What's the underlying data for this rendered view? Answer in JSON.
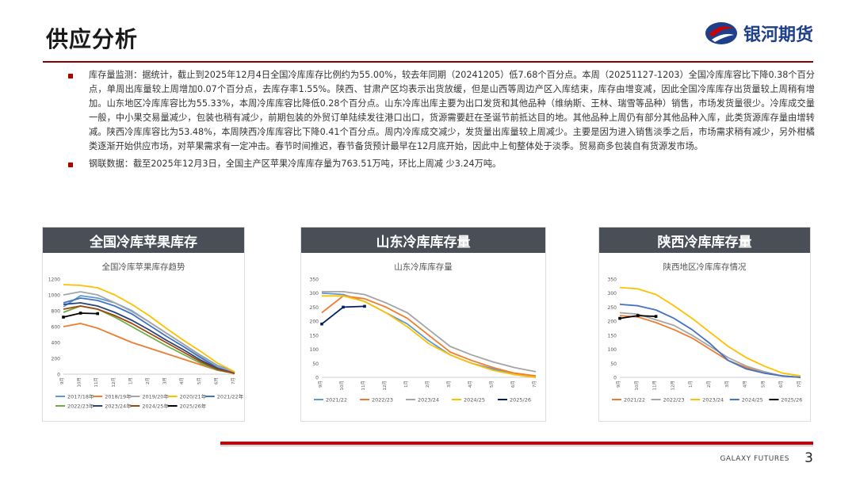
{
  "header": {
    "title": "供应分析",
    "logo_text": "银河期货"
  },
  "bullets": [
    "库存量监测：据统计，截止到2025年12月4日全国冷库库存比例约为55.00%，较去年同期（20241205）低7.68个百分点。本周（20251127-1203）全国冷库库容比下降0.38个百分点，单周出库量较上周增加0.07个百分点，去库存率1.55%。陕西、甘肃产区均表示出货放缓，但是山西等周边产区入库结束，库存由增变减，因此全国冷库库存出货量较上周稍有增加。山东地区冷库库容比为55.33%，本周冷库库容比降低0.28个百分点。山东冷库出库主要为出口发货和其他品种（维纳斯、王林、瑞雪等品种）销售，市场发货量很少。冷库成交量一般，中小果交易量减少，包装也稍有减少，前期包装的外贸订单陆续发往港口出口，货源需要赶在圣诞节前抵达目的地。其他品种上周仍有部分其他品种入库，此类货源库存量由增转减。陕西冷库库容比为53.48%，本周陕西冷库库容比下降0.41个百分点。周内冷库成交减少，发货量出库量较上周减少。主要是因为进入销售淡季之后，市场需求稍有减少，另外柑橘类逐渐开始供应市场，对苹果需求有一定冲击。春节时间推迟，春节备货预计最早在12月底开始，因此中上旬整体处于淡季。贸易商多包装自有货源发市场。",
    "钢联数据：截至2025年12月3日，全国主产区苹果冷库库存量为763.51万吨，环比上周减 少3.24万吨。"
  ],
  "panels": [
    {
      "header": "全国冷库苹果库存",
      "subtitle": "全国冷库苹果库存趋势"
    },
    {
      "header": "山东冷库库存量",
      "subtitle": "山东冷库库存量"
    },
    {
      "header": "陕西冷库库存量",
      "subtitle": "陕西地区冷库库存情况"
    }
  ],
  "footer": {
    "brand": "GALAXY FUTURES",
    "page": "3"
  },
  "colors": {
    "accent_red": "#c00000",
    "panel_header": "#4a4f57",
    "logo_blue": "#1e3f8a"
  },
  "chart_data": [
    {
      "type": "line",
      "title": "全国冷库苹果库存趋势",
      "categories": [
        "9月",
        "10月",
        "11月",
        "12月",
        "1月",
        "2月",
        "3月",
        "4月",
        "5月",
        "6月",
        "7月"
      ],
      "ylim": [
        0,
        1200
      ],
      "yticks": [
        "0",
        "200",
        "400",
        "600",
        "800",
        "1000",
        "1200"
      ],
      "legend": "bottom",
      "series": [
        {
          "name": "2017/18年",
          "color": "#5b9bd5",
          "values": [
            850,
            990,
            960,
            900,
            800,
            660,
            520,
            380,
            240,
            110,
            30
          ]
        },
        {
          "name": "2018/19年",
          "color": "#ed7d31",
          "values": [
            600,
            640,
            580,
            490,
            400,
            330,
            260,
            190,
            120,
            50,
            10
          ]
        },
        {
          "name": "2019/20年",
          "color": "#a5a5a5",
          "values": [
            1000,
            1040,
            1000,
            900,
            790,
            660,
            520,
            380,
            230,
            100,
            20
          ]
        },
        {
          "name": "2020/21年",
          "color": "#ffc000",
          "values": [
            1130,
            1120,
            1090,
            1000,
            880,
            740,
            580,
            430,
            290,
            140,
            30
          ]
        },
        {
          "name": "2021/22年",
          "color": "#4472c4",
          "values": [
            900,
            960,
            930,
            860,
            760,
            620,
            480,
            350,
            210,
            80,
            10
          ]
        },
        {
          "name": "2022/23年",
          "color": "#70ad47",
          "values": [
            780,
            860,
            820,
            720,
            600,
            480,
            360,
            250,
            140,
            50,
            10
          ]
        },
        {
          "name": "2023/24年",
          "color": "#264478",
          "values": [
            880,
            900,
            860,
            780,
            680,
            560,
            430,
            310,
            180,
            70,
            10
          ]
        },
        {
          "name": "2024/25年",
          "color": "#9e480e",
          "values": [
            820,
            860,
            820,
            740,
            640,
            520,
            400,
            280,
            160,
            60,
            10
          ]
        },
        {
          "name": "2025/26年",
          "color": "#000000",
          "values": [
            720,
            770,
            764,
            null,
            null,
            null,
            null,
            null,
            null,
            null,
            null
          ]
        }
      ]
    },
    {
      "type": "line",
      "title": "山东冷库库存量",
      "categories": [
        "9月",
        "10月",
        "11月",
        "12月",
        "1月",
        "2月",
        "3月",
        "4月",
        "5月",
        "6月",
        "7月"
      ],
      "ylim": [
        0,
        350
      ],
      "yticks": [
        "0",
        "50",
        "100",
        "150",
        "200",
        "250",
        "300",
        "350"
      ],
      "legend": "bottom",
      "series": [
        {
          "name": "2021/22",
          "color": "#5b9bd5",
          "values": [
            300,
            295,
            270,
            230,
            190,
            130,
            80,
            50,
            30,
            10,
            0
          ]
        },
        {
          "name": "2022/23",
          "color": "#ed7d31",
          "values": [
            230,
            290,
            280,
            250,
            210,
            150,
            90,
            60,
            35,
            15,
            5
          ]
        },
        {
          "name": "2023/24",
          "color": "#a5a5a5",
          "values": [
            305,
            305,
            295,
            265,
            230,
            170,
            110,
            80,
            55,
            35,
            20
          ]
        },
        {
          "name": "2024/25",
          "color": "#ffc000",
          "values": [
            290,
            290,
            270,
            230,
            180,
            120,
            80,
            50,
            25,
            10,
            0
          ]
        },
        {
          "name": "2025/26",
          "color": "#002060",
          "values": [
            190,
            250,
            253,
            null,
            null,
            null,
            null,
            null,
            null,
            null,
            null
          ]
        }
      ]
    },
    {
      "type": "line",
      "title": "陕西地区冷库库存情况",
      "categories": [
        "9月",
        "10月",
        "11月",
        "12月",
        "1月",
        "2月",
        "3月",
        "4月",
        "5月",
        "6月",
        "7月"
      ],
      "ylim": [
        0,
        350
      ],
      "yticks": [
        "0",
        "50",
        "100",
        "150",
        "200",
        "250",
        "300",
        "350"
      ],
      "legend": "bottom",
      "series": [
        {
          "name": "2021/22",
          "color": "#ed7d31",
          "values": [
            220,
            215,
            195,
            170,
            140,
            100,
            60,
            35,
            15,
            5,
            0
          ]
        },
        {
          "name": "2022/23",
          "color": "#a5a5a5",
          "values": [
            230,
            225,
            205,
            185,
            150,
            110,
            70,
            40,
            20,
            5,
            0
          ]
        },
        {
          "name": "2023/24",
          "color": "#ffc000",
          "values": [
            320,
            315,
            295,
            255,
            210,
            160,
            110,
            70,
            40,
            15,
            5
          ]
        },
        {
          "name": "2024/25",
          "color": "#4472c4",
          "values": [
            260,
            255,
            240,
            210,
            170,
            120,
            60,
            30,
            15,
            5,
            0
          ]
        },
        {
          "name": "2025/26",
          "color": "#000000",
          "values": [
            210,
            220,
            217,
            null,
            null,
            null,
            null,
            null,
            null,
            null,
            null
          ]
        }
      ]
    }
  ]
}
